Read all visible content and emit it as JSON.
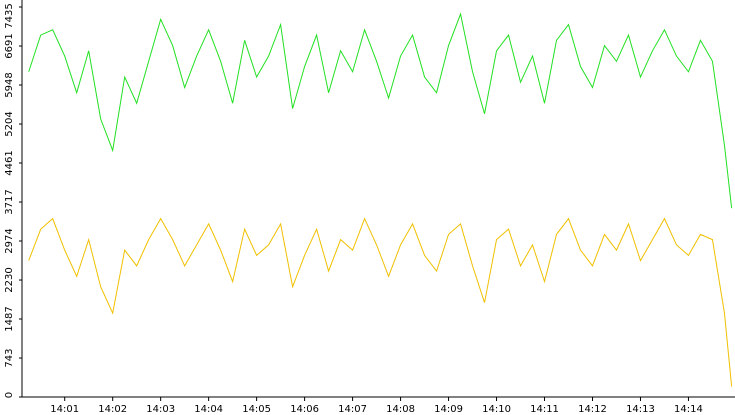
{
  "chart_data": {
    "type": "line",
    "x": [
      840.25,
      840.5,
      840.75,
      841,
      841.25,
      841.5,
      841.75,
      842,
      842.25,
      842.5,
      842.75,
      843,
      843.25,
      843.5,
      843.75,
      844,
      844.25,
      844.5,
      844.75,
      845,
      845.25,
      845.5,
      845.75,
      846,
      846.25,
      846.5,
      846.75,
      847,
      847.25,
      847.5,
      847.75,
      848,
      848.25,
      848.5,
      848.75,
      849,
      849.25,
      849.5,
      849.75,
      850,
      850.25,
      850.5,
      850.75,
      851,
      851.25,
      851.5,
      851.75,
      852,
      852.25,
      852.5,
      852.75,
      853,
      853.25,
      853.5,
      853.75,
      854,
      854.25,
      854.5,
      854.75,
      854.9
    ],
    "series": [
      {
        "color": "#22e022",
        "values": [
          6200,
          6900,
          7000,
          6500,
          5800,
          6600,
          5300,
          4700,
          6100,
          5600,
          6400,
          7200,
          6700,
          5900,
          6500,
          7000,
          6400,
          5600,
          6800,
          6100,
          6500,
          7100,
          5500,
          6300,
          6900,
          5800,
          6600,
          6200,
          7000,
          6400,
          5700,
          6500,
          6900,
          6100,
          5800,
          6700,
          7300,
          6200,
          5400,
          6600,
          6900,
          6000,
          6500,
          5600,
          6800,
          7100,
          6300,
          5900,
          6700,
          6400,
          6900,
          6100,
          6600,
          7000,
          6500,
          6200,
          6800,
          6400,
          4800,
          3600
        ]
      },
      {
        "color": "#f0c000",
        "values": [
          2600,
          3200,
          3400,
          2800,
          2300,
          3000,
          2100,
          1600,
          2800,
          2500,
          3000,
          3400,
          3000,
          2500,
          2900,
          3300,
          2800,
          2200,
          3200,
          2700,
          2900,
          3300,
          2100,
          2700,
          3200,
          2400,
          3000,
          2800,
          3400,
          2900,
          2300,
          2900,
          3300,
          2700,
          2400,
          3100,
          3300,
          2500,
          1800,
          3000,
          3200,
          2500,
          2900,
          2200,
          3100,
          3400,
          2800,
          2500,
          3100,
          2800,
          3300,
          2600,
          3000,
          3400,
          2900,
          2700,
          3100,
          3000,
          1600,
          200
        ]
      }
    ],
    "xlim": [
      840.11,
      854.97
    ],
    "xticks": [
      {
        "value": 841,
        "label": "14:01"
      },
      {
        "value": 842,
        "label": "14:02"
      },
      {
        "value": 843,
        "label": "14:03"
      },
      {
        "value": 844,
        "label": "14:04"
      },
      {
        "value": 845,
        "label": "14:05"
      },
      {
        "value": 846,
        "label": "14:06"
      },
      {
        "value": 847,
        "label": "14:07"
      },
      {
        "value": 848,
        "label": "14:08"
      },
      {
        "value": 849,
        "label": "14:09"
      },
      {
        "value": 850,
        "label": "14:10"
      },
      {
        "value": 851,
        "label": "14:11"
      },
      {
        "value": 852,
        "label": "14:12"
      },
      {
        "value": 853,
        "label": "14:13"
      },
      {
        "value": 854,
        "label": "14:14"
      }
    ],
    "ylim": [
      0,
      7435
    ],
    "yticks": [
      0,
      743,
      1487,
      2230,
      2974,
      3717,
      4461,
      5204,
      5948,
      6691,
      7435
    ]
  }
}
